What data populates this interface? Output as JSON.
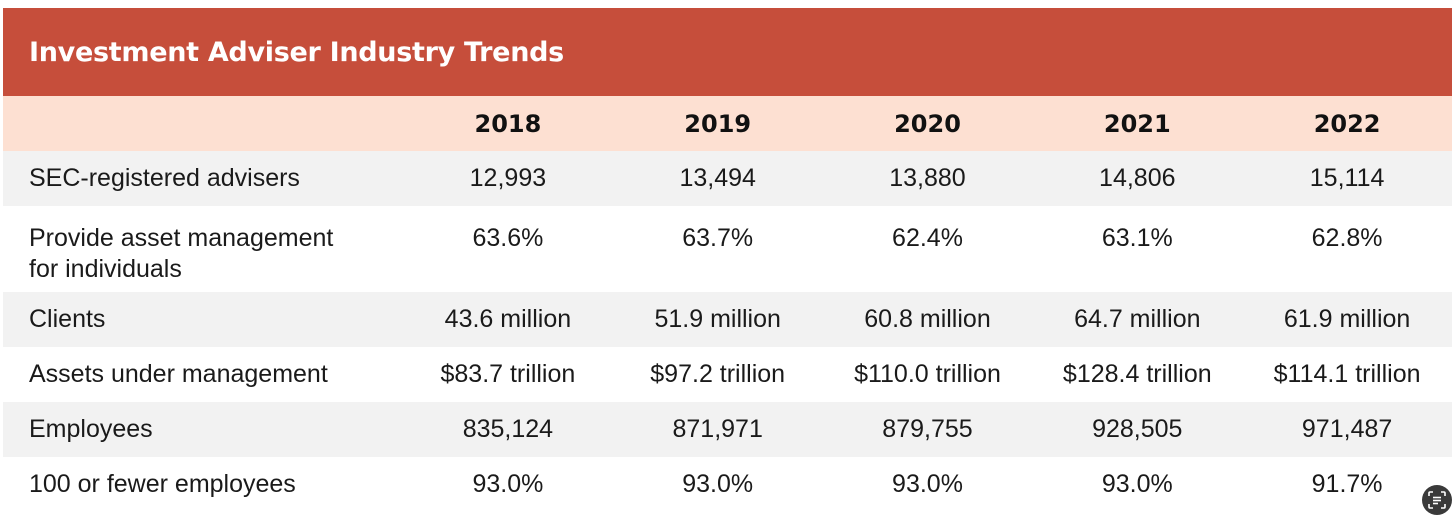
{
  "chart_data": {
    "type": "table",
    "title": "Investment Adviser Industry Trends",
    "columns": [
      "2018",
      "2019",
      "2020",
      "2021",
      "2022"
    ],
    "rows": [
      {
        "label": "SEC-registered advisers",
        "values": [
          "12,993",
          "13,494",
          "13,880",
          "14,806",
          "15,114"
        ]
      },
      {
        "label_lines": [
          "Provide asset management",
          "for individuals"
        ],
        "values": [
          "63.6%",
          "63.7%",
          "62.4%",
          "63.1%",
          "62.8%"
        ]
      },
      {
        "label": "Clients",
        "values": [
          "43.6 million",
          "51.9 million",
          "60.8 million",
          "64.7 million",
          "61.9 million"
        ]
      },
      {
        "label": "Assets under management",
        "values": [
          "$83.7 trillion",
          "$97.2 trillion",
          "$110.0 trillion",
          "$128.4 trillion",
          "$114.1 trillion"
        ]
      },
      {
        "label": "Employees",
        "values": [
          "835,124",
          "871,971",
          "879,755",
          "928,505",
          "971,487"
        ]
      },
      {
        "label": "100 or fewer employees",
        "values": [
          "93.0%",
          "93.0%",
          "93.0%",
          "93.0%",
          "91.7%"
        ]
      }
    ]
  },
  "colors": {
    "header_red": "#c64e3b",
    "year_row_bg": "#fde0d2",
    "stripe_gray": "#f2f2f2"
  },
  "icons": {
    "corner": "text-scan-icon"
  }
}
